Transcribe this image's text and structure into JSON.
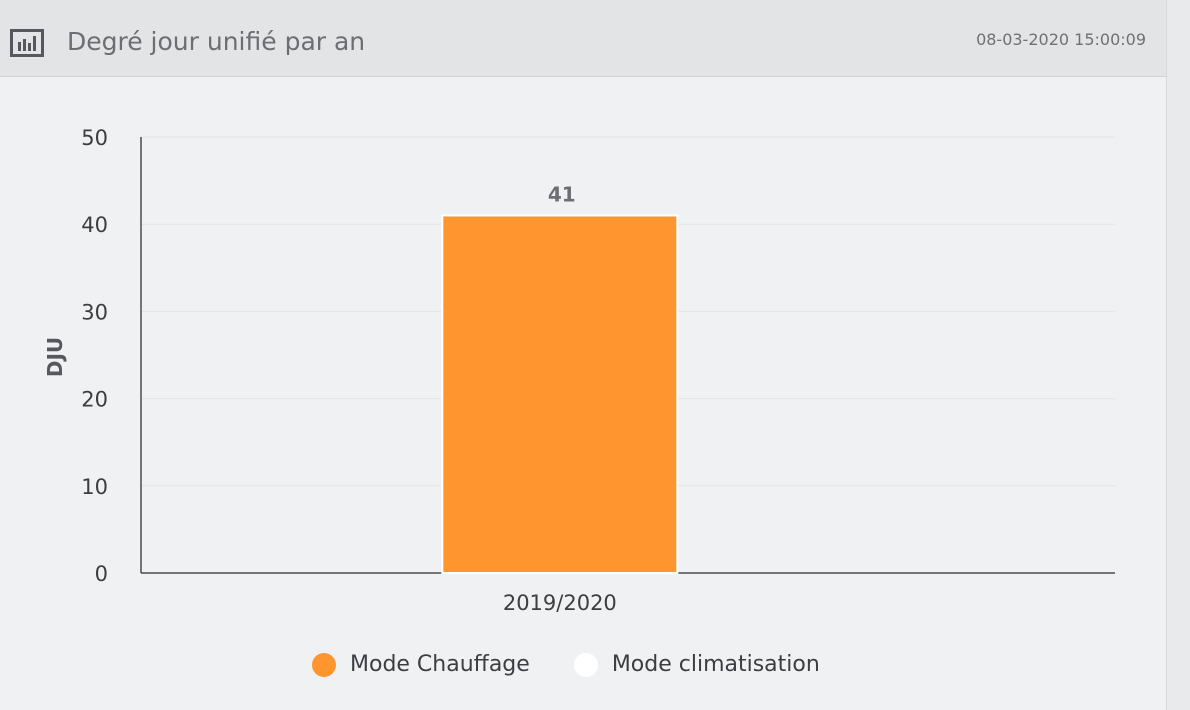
{
  "header": {
    "icon": "bar-chart-icon",
    "title": "Degré jour unifié par an",
    "timestamp": "08-03-2020 15:00:09"
  },
  "colors": {
    "heating": "#fe952e",
    "cooling": "#ffffff"
  },
  "chart_data": {
    "type": "bar",
    "title": "Degré jour unifié par an",
    "xlabel": "",
    "ylabel": "DJU",
    "categories": [
      "2019/2020"
    ],
    "ylim": [
      0,
      50
    ],
    "yticks": [
      0,
      10,
      20,
      30,
      40,
      50
    ],
    "grid": true,
    "legend_position": "bottom",
    "series": [
      {
        "name": "Mode Chauffage",
        "values": [
          41
        ],
        "color": "#fe952e",
        "data_labels": [
          "41"
        ]
      },
      {
        "name": "Mode climatisation",
        "values": [
          0
        ],
        "color": "#ffffff"
      }
    ]
  }
}
